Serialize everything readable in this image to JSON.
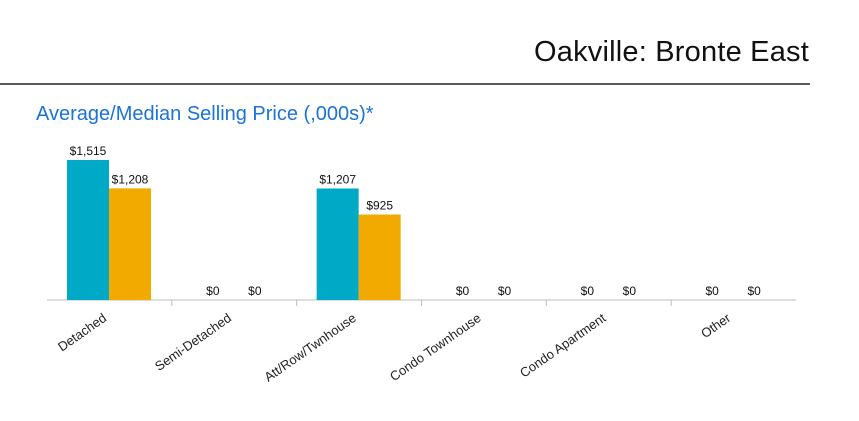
{
  "header": {
    "title": "Oakville: Bronte East"
  },
  "chart_data": {
    "type": "bar",
    "title": "Average/Median Selling Price (,000s)*",
    "xlabel": "",
    "ylabel": "",
    "ylim": [
      0,
      1515
    ],
    "grid": false,
    "categories": [
      "Detached",
      "Semi-Detached",
      "Att/Row/Twnhouse",
      "Condo Townhouse",
      "Condo Apartment",
      "Other"
    ],
    "series": [
      {
        "name": "Average",
        "color": "#00a9c6",
        "values": [
          1515,
          0,
          1207,
          0,
          0,
          0
        ],
        "labels": [
          "$1,515",
          "$0",
          "$1,207",
          "$0",
          "$0",
          "$0"
        ]
      },
      {
        "name": "Median",
        "color": "#f2a900",
        "values": [
          1208,
          0,
          925,
          0,
          0,
          0
        ],
        "labels": [
          "$1,208",
          "$0",
          "$925",
          "$0",
          "$0",
          "$0"
        ]
      }
    ]
  }
}
